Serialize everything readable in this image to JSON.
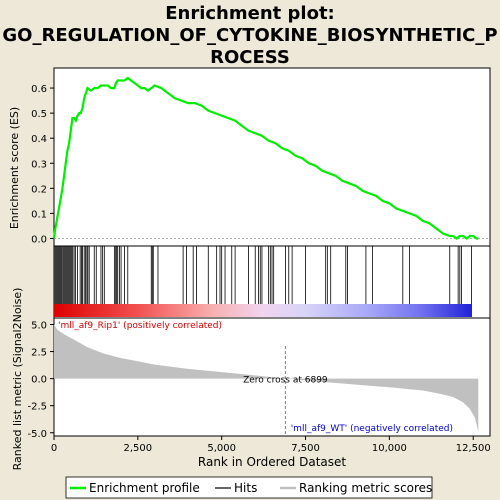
{
  "title_lines": [
    "Enrichment plot:",
    "GO_REGULATION_OF_CYTOKINE_BIOSYNTHETIC_P",
    "ROCESS"
  ],
  "chart_data": {
    "type": "line",
    "enrichment": {
      "ylabel": "Enrichment score (ES)",
      "ylim": [
        -0.03,
        0.68
      ],
      "yticks": [
        0.0,
        0.1,
        0.2,
        0.3,
        0.4,
        0.5,
        0.6
      ],
      "ytick_labels": [
        "0.0",
        "0.1",
        "0.2",
        "0.3",
        "0.4",
        "0.5",
        "0.6"
      ],
      "line_color": "#00ee00",
      "points": [
        [
          0,
          0.0
        ],
        [
          40,
          0.04
        ],
        [
          80,
          0.07
        ],
        [
          120,
          0.1
        ],
        [
          160,
          0.13
        ],
        [
          200,
          0.16
        ],
        [
          250,
          0.2
        ],
        [
          300,
          0.25
        ],
        [
          350,
          0.3
        ],
        [
          400,
          0.35
        ],
        [
          450,
          0.38
        ],
        [
          500,
          0.43
        ],
        [
          550,
          0.48
        ],
        [
          600,
          0.48
        ],
        [
          650,
          0.47
        ],
        [
          700,
          0.49
        ],
        [
          750,
          0.5
        ],
        [
          800,
          0.5
        ],
        [
          850,
          0.52
        ],
        [
          900,
          0.56
        ],
        [
          950,
          0.58
        ],
        [
          1000,
          0.6
        ],
        [
          1100,
          0.59
        ],
        [
          1200,
          0.6
        ],
        [
          1300,
          0.6
        ],
        [
          1400,
          0.61
        ],
        [
          1500,
          0.61
        ],
        [
          1600,
          0.61
        ],
        [
          1700,
          0.6
        ],
        [
          1800,
          0.6
        ],
        [
          1850,
          0.62
        ],
        [
          1900,
          0.63
        ],
        [
          2000,
          0.63
        ],
        [
          2100,
          0.63
        ],
        [
          2200,
          0.64
        ],
        [
          2300,
          0.63
        ],
        [
          2400,
          0.62
        ],
        [
          2500,
          0.61
        ],
        [
          2600,
          0.6
        ],
        [
          2700,
          0.6
        ],
        [
          2800,
          0.59
        ],
        [
          2900,
          0.6
        ],
        [
          3000,
          0.61
        ],
        [
          3200,
          0.6
        ],
        [
          3400,
          0.58
        ],
        [
          3600,
          0.56
        ],
        [
          3800,
          0.55
        ],
        [
          4000,
          0.54
        ],
        [
          4200,
          0.54
        ],
        [
          4400,
          0.53
        ],
        [
          4600,
          0.51
        ],
        [
          4800,
          0.5
        ],
        [
          5000,
          0.49
        ],
        [
          5200,
          0.48
        ],
        [
          5400,
          0.47
        ],
        [
          5600,
          0.45
        ],
        [
          5800,
          0.43
        ],
        [
          6000,
          0.42
        ],
        [
          6200,
          0.41
        ],
        [
          6400,
          0.39
        ],
        [
          6600,
          0.38
        ],
        [
          6800,
          0.36
        ],
        [
          7000,
          0.35
        ],
        [
          7200,
          0.33
        ],
        [
          7400,
          0.32
        ],
        [
          7600,
          0.3
        ],
        [
          7800,
          0.29
        ],
        [
          8000,
          0.27
        ],
        [
          8200,
          0.26
        ],
        [
          8400,
          0.25
        ],
        [
          8600,
          0.23
        ],
        [
          8800,
          0.22
        ],
        [
          9000,
          0.21
        ],
        [
          9200,
          0.19
        ],
        [
          9400,
          0.18
        ],
        [
          9600,
          0.17
        ],
        [
          9800,
          0.15
        ],
        [
          10000,
          0.14
        ],
        [
          10200,
          0.12
        ],
        [
          10400,
          0.11
        ],
        [
          10600,
          0.1
        ],
        [
          10800,
          0.09
        ],
        [
          11000,
          0.07
        ],
        [
          11200,
          0.06
        ],
        [
          11400,
          0.04
        ],
        [
          11600,
          0.02
        ],
        [
          11800,
          0.01
        ],
        [
          11900,
          0.01
        ],
        [
          12000,
          0.0
        ],
        [
          12100,
          0.01
        ],
        [
          12200,
          0.01
        ],
        [
          12300,
          0.0
        ],
        [
          12400,
          0.01
        ],
        [
          12500,
          0.01
        ],
        [
          12600,
          0.0
        ],
        [
          12650,
          0.0
        ]
      ]
    },
    "hits": [
      10,
      40,
      70,
      100,
      130,
      160,
      190,
      220,
      260,
      290,
      320,
      350,
      380,
      410,
      440,
      470,
      500,
      530,
      560,
      600,
      640,
      700,
      780,
      820,
      850,
      900,
      940,
      980,
      1010,
      1050,
      1200,
      1260,
      1400,
      1450,
      1500,
      1800,
      1840,
      1870,
      1900,
      1950,
      2000,
      2100,
      2200,
      2900,
      2930,
      2960,
      3100,
      3850,
      3950,
      4150,
      4250,
      4600,
      4850,
      4950,
      5000,
      5100,
      5300,
      5400,
      5800,
      6000,
      6100,
      6150,
      6200,
      6400,
      6450,
      6500,
      6550,
      6900,
      7000,
      7100,
      7500,
      8100,
      8150,
      8250,
      8700,
      8750,
      9300,
      9500,
      10400,
      10600,
      11800,
      12050,
      12100,
      12150,
      12450
    ],
    "ranked_metric": {
      "ylabel": "Ranked list metric (Signal2Noise)",
      "ylim": [
        -5.3,
        5.6
      ],
      "yticks": [
        5.0,
        2.5,
        0.0,
        -2.5,
        -5.0
      ],
      "ytick_labels": [
        "5.0",
        "2.5",
        "0.0",
        "-2.5",
        "-5.0"
      ],
      "points": [
        [
          0,
          5.0
        ],
        [
          100,
          4.5
        ],
        [
          300,
          4.1
        ],
        [
          600,
          3.6
        ],
        [
          1000,
          2.9
        ],
        [
          1500,
          2.3
        ],
        [
          2000,
          1.9
        ],
        [
          2500,
          1.6
        ],
        [
          3000,
          1.3
        ],
        [
          4000,
          0.9
        ],
        [
          5000,
          0.6
        ],
        [
          6000,
          0.3
        ],
        [
          6899,
          0.0
        ],
        [
          8000,
          -0.3
        ],
        [
          9000,
          -0.55
        ],
        [
          10000,
          -0.8
        ],
        [
          11000,
          -1.1
        ],
        [
          11500,
          -1.4
        ],
        [
          11900,
          -1.7
        ],
        [
          12200,
          -2.2
        ],
        [
          12400,
          -2.8
        ],
        [
          12550,
          -3.6
        ],
        [
          12650,
          -4.9
        ]
      ],
      "zero_cross_label": "Zero cross at 6899",
      "zero_cross_x": 6899,
      "positive_label": "'mll_af9_Rip1' (positively correlated)",
      "negative_label": "'mll_af9_WT' (negatively correlated)"
    },
    "xlabel": "Rank in Ordered Dataset",
    "xlim": [
      0,
      13000
    ],
    "xticks": [
      0,
      2500,
      5000,
      7500,
      10000,
      12500
    ],
    "xtick_labels": [
      "0",
      "2,500",
      "5,000",
      "7,500",
      "10,000",
      "12,500"
    ],
    "max_rank": 12650,
    "legend": {
      "placement": "bottom",
      "entries": [
        {
          "label": "Enrichment profile",
          "color": "#00ee00"
        },
        {
          "label": "Hits",
          "color": "#000000"
        },
        {
          "label": "Ranking metric scores",
          "color": "#c0c0c0"
        }
      ]
    }
  }
}
